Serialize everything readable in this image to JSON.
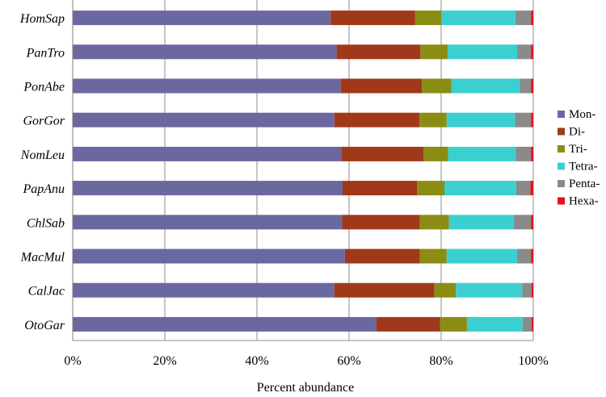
{
  "chart_data": {
    "type": "bar",
    "orientation": "horizontal",
    "stacked": "percent",
    "title": "",
    "xlabel": "Percent abundance",
    "ylabel": "",
    "xlim": [
      0,
      100
    ],
    "x_ticks": [
      "0%",
      "20%",
      "40%",
      "60%",
      "80%",
      "100%"
    ],
    "grid": true,
    "legend_position": "right",
    "categories": [
      "HomSap",
      "PanTro",
      "PonAbe",
      "GorGor",
      "NomLeu",
      "PapAnu",
      "ChlSab",
      "MacMul",
      "CalJac",
      "OtoGar"
    ],
    "series": [
      {
        "name": "Mon-",
        "color": "#6b68a0",
        "values": [
          56.0,
          57.3,
          58.2,
          56.8,
          58.3,
          58.6,
          58.5,
          59.1,
          56.8,
          65.9
        ]
      },
      {
        "name": "Di-",
        "color": "#a0391a",
        "values": [
          18.3,
          18.2,
          17.6,
          18.5,
          17.9,
          16.2,
          16.9,
          16.3,
          21.7,
          13.9
        ]
      },
      {
        "name": "Tri-",
        "color": "#8b8c14",
        "values": [
          5.7,
          5.9,
          6.4,
          5.9,
          5.3,
          5.9,
          6.3,
          5.8,
          4.7,
          5.8
        ]
      },
      {
        "name": "Tetra-",
        "color": "#3ccfcf",
        "values": [
          16.1,
          15.1,
          14.9,
          14.8,
          14.7,
          15.6,
          14.1,
          15.3,
          14.4,
          12.1
        ]
      },
      {
        "name": "Penta-",
        "color": "#8a8a8a",
        "values": [
          3.4,
          3.0,
          2.4,
          3.5,
          3.3,
          3.1,
          3.7,
          3.0,
          2.0,
          1.9
        ]
      },
      {
        "name": "Hexa-",
        "color": "#e8121e",
        "values": [
          0.5,
          0.5,
          0.5,
          0.5,
          0.5,
          0.6,
          0.5,
          0.5,
          0.4,
          0.4
        ]
      }
    ]
  }
}
